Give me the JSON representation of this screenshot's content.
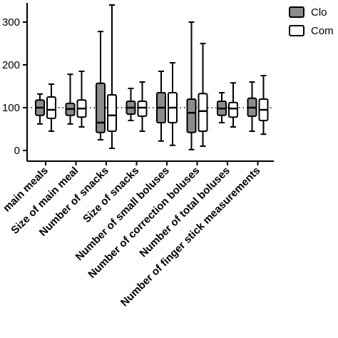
{
  "chart_data": {
    "type": "box",
    "title": "",
    "xlabel": "",
    "ylabel": "",
    "ylim": [
      -25,
      345
    ],
    "y_ticks": [
      0,
      100,
      200,
      300
    ],
    "reference_line": 100,
    "legend": {
      "placement": "top-right",
      "entries": [
        "Clo",
        "Com"
      ]
    },
    "colors": {
      "series_a": "#8c8c8c",
      "series_b": "#ffffff",
      "stroke": "#000000"
    },
    "categories": [
      "Number of main meals",
      "Size of main meal",
      "Number of snacks",
      "Size of snacks",
      "Number of small boluses",
      "Number of correction boluses",
      "Number of total boluses",
      "Number of finger stick measurements"
    ],
    "visible_category_labels": [
      "main meals",
      "Size of main meal",
      "Number of snacks",
      "Size of snacks",
      "Number of small boluses",
      "Number of correction boluses",
      "Number of total boluses",
      "Number of finger stick measurements"
    ],
    "series": [
      {
        "name": "Clo",
        "boxes": [
          {
            "min": 62,
            "q1": 82,
            "median": 100,
            "q3": 118,
            "max": 132
          },
          {
            "min": 62,
            "q1": 82,
            "median": 97,
            "q3": 110,
            "max": 178
          },
          {
            "min": 25,
            "q1": 42,
            "median": 65,
            "q3": 157,
            "max": 278
          },
          {
            "min": 70,
            "q1": 85,
            "median": 100,
            "q3": 115,
            "max": 145
          },
          {
            "min": 22,
            "q1": 65,
            "median": 100,
            "q3": 135,
            "max": 185
          },
          {
            "min": 2,
            "q1": 42,
            "median": 88,
            "q3": 120,
            "max": 300
          },
          {
            "min": 65,
            "q1": 82,
            "median": 98,
            "q3": 115,
            "max": 135
          },
          {
            "min": 45,
            "q1": 80,
            "median": 100,
            "q3": 122,
            "max": 160
          }
        ]
      },
      {
        "name": "Com",
        "boxes": [
          {
            "min": 45,
            "q1": 75,
            "median": 95,
            "q3": 125,
            "max": 155
          },
          {
            "min": 55,
            "q1": 78,
            "median": 98,
            "q3": 118,
            "max": 185
          },
          {
            "min": 5,
            "q1": 45,
            "median": 82,
            "q3": 130,
            "max": 340
          },
          {
            "min": 45,
            "q1": 80,
            "median": 100,
            "q3": 115,
            "max": 160
          },
          {
            "min": 12,
            "q1": 65,
            "median": 100,
            "q3": 135,
            "max": 205
          },
          {
            "min": 10,
            "q1": 45,
            "median": 92,
            "q3": 133,
            "max": 250
          },
          {
            "min": 55,
            "q1": 78,
            "median": 98,
            "q3": 112,
            "max": 158
          },
          {
            "min": 38,
            "q1": 70,
            "median": 95,
            "q3": 120,
            "max": 175
          }
        ]
      }
    ]
  }
}
